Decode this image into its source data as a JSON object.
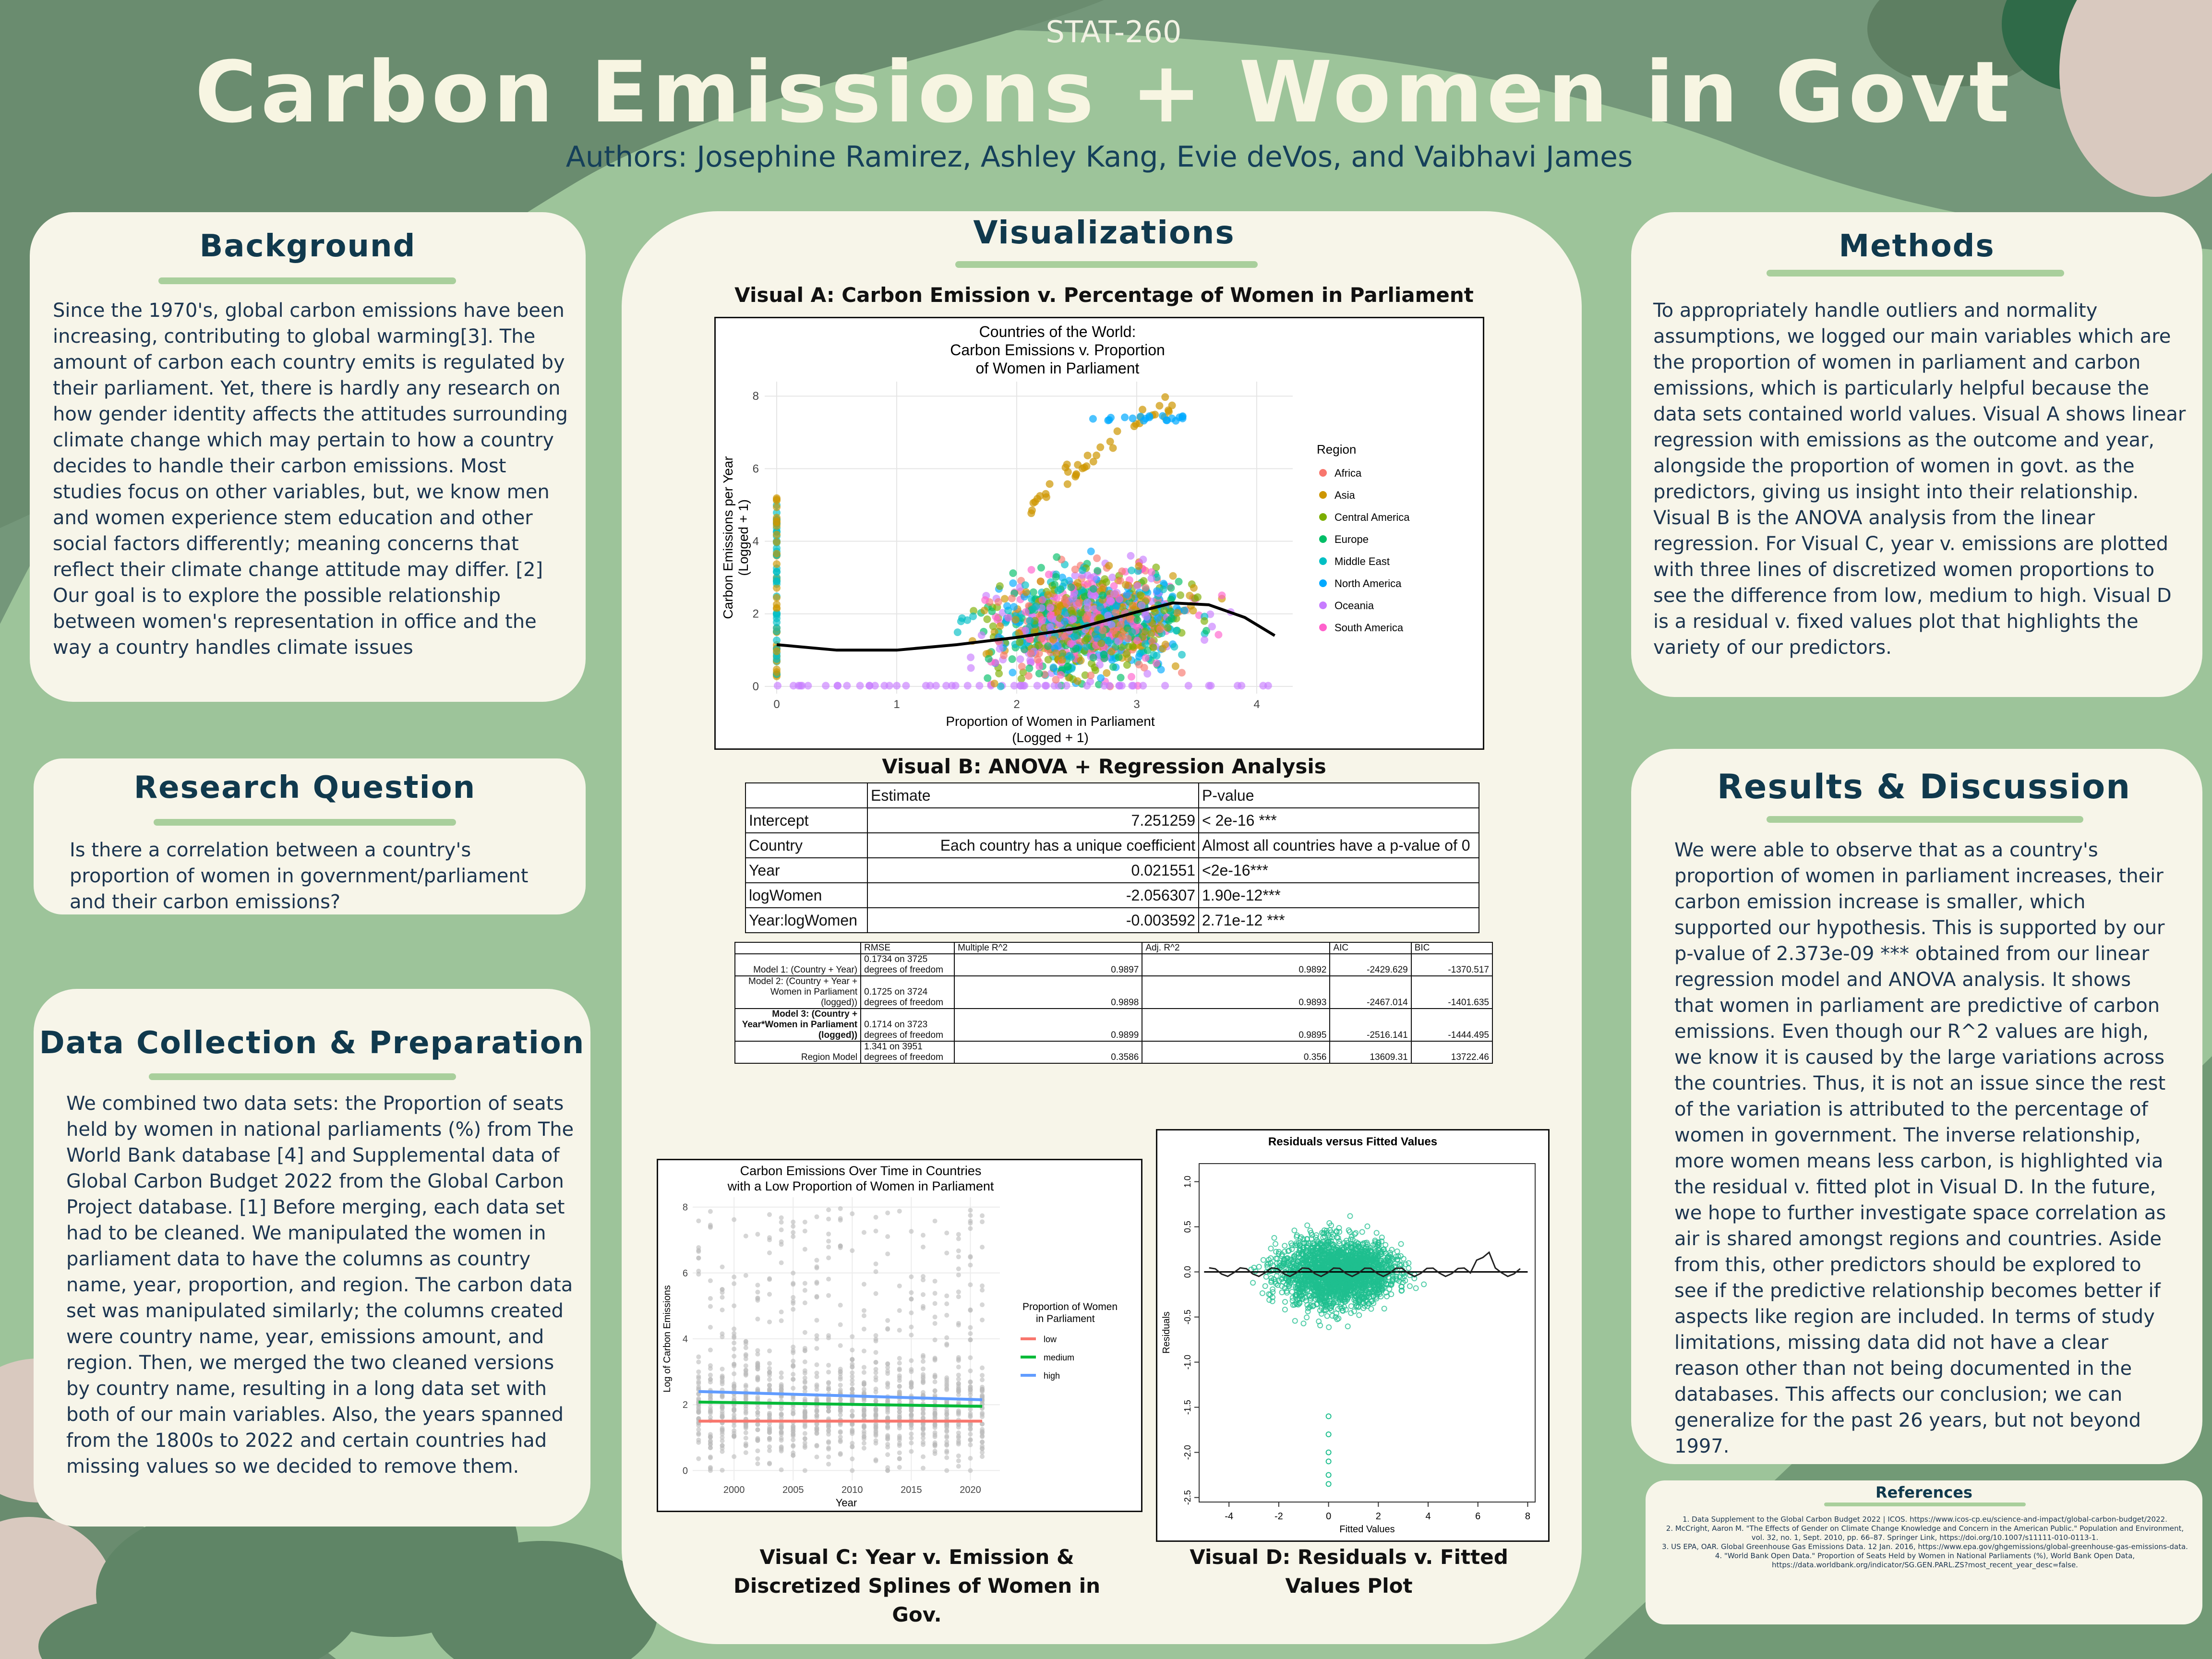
{
  "header": {
    "course": "STAT-260",
    "title": "Carbon Emissions + Women in Govt",
    "authors": "Authors: Josephine Ramirez, Ashley Kang, Evie deVos, and Vaibhavi James"
  },
  "background": {
    "title": "Background",
    "text": "Since the 1970's, global carbon emissions have been increasing, contributing to global warming[3]. The amount of carbon each country emits is regulated by their parliament. Yet, there is hardly any research on how gender identity affects the attitudes surrounding climate change which may pertain to how a country decides to handle their carbon emissions. Most studies focus on other variables, but, we know men and women experience stem education and other social factors differently; meaning concerns that reflect their climate change attitude may differ. [2]",
    "text2": "Our goal is to explore the possible relationship between women's representation in office and the way a country handles climate issues"
  },
  "research": {
    "title": "Research Question",
    "text": "Is there a correlation between a country's proportion of women in government/parliament and their carbon emissions?"
  },
  "data_collection": {
    "title": "Data Collection & Preparation",
    "text": "We combined two data sets: the Proportion of seats held by women in national parliaments (%) from The World Bank database [4] and Supplemental data of Global Carbon Budget 2022 from the Global Carbon Project database. [1] Before merging, each data set had to be cleaned. We manipulated the women in parliament data to have the columns as country name, year, proportion, and region. The carbon data set was manipulated similarly; the columns created were country name, year, emissions amount, and region. Then, we merged the two cleaned versions by country name, resulting in a long data set with both of our main variables. Also, the years spanned from the 1800s to 2022 and certain countries had missing values so we decided to remove them."
  },
  "methods": {
    "title": "Methods",
    "text": "To appropriately handle outliers and normality assumptions, we logged our main variables which are the proportion of women in parliament and carbon emissions, which is particularly helpful because the data sets contained world values. Visual A shows linear regression with emissions as the outcome and year, alongside the proportion of women in govt. as the predictors, giving us insight into their relationship. Visual B is the ANOVA analysis from the linear regression. For Visual C, year v. emissions are plotted with three lines of discretized women proportions to see the difference from low, medium to high. Visual D is a residual v. fixed values plot that highlights the variety of our predictors."
  },
  "results": {
    "title": "Results & Discussion",
    "text": "We were able to observe that as a country's proportion of women in parliament increases, their carbon emission increase is smaller, which supported our hypothesis. This is supported by our p-value of 2.373e-09 *** obtained from our linear regression model and ANOVA analysis. It shows that women in parliament are predictive of carbon emissions. Even though our R^2 values are high, we know it is caused by the large variations across the countries. Thus, it is not an issue since the rest of the variation is attributed to the percentage of women in government. The inverse relationship, more women means less carbon, is highlighted via the residual v. fitted plot in Visual D. In the future, we hope to further investigate space correlation as air is shared amongst regions and countries. Aside from this, other predictors should be explored to see if the predictive relationship becomes better if aspects like region are included. In terms of study limitations, missing data did not have a clear reason other than not being documented in the databases. This affects our conclusion; we can generalize for the past 26 years, but not beyond 1997."
  },
  "references": {
    "title": "References",
    "items": [
      "1. Data Supplement to the Global Carbon Budget 2022 | ICOS. https://www.icos-cp.eu/science-and-impact/global-carbon-budget/2022.",
      "2. McCright, Aaron M. \"The Effects of Gender on Climate Change Knowledge and Concern in the American Public.\" Population and Environment, vol. 32, no. 1, Sept. 2010, pp. 66–87. Springer Link, https://doi.org/10.1007/s11111-010-0113-1.",
      "3. US EPA, OAR. Global Greenhouse Gas Emissions Data. 12 Jan. 2016, https://www.epa.gov/ghgemissions/global-greenhouse-gas-emissions-data.",
      "4. \"World Bank Open Data.\" Proportion of Seats Held by Women in National Parliaments (%), World Bank Open Data, https://data.worldbank.org/indicator/SG.GEN.PARL.ZS?most_recent_year_desc=false."
    ]
  },
  "visualizations": {
    "title": "Visualizations",
    "caption_a": "Visual A: Carbon Emission v. Percentage of Women in Parliament",
    "caption_b": "Visual B: ANOVA  + Regression Analysis",
    "caption_c_1": "Visual C: Year v. Emission &",
    "caption_c_2": "Discretized Splines of Women in Gov.",
    "caption_d_1": "Visual D: Residuals v. Fitted",
    "caption_d_2": "Values Plot"
  },
  "anova_table": {
    "headers": [
      "",
      "Estimate",
      "P-value"
    ],
    "rows": [
      [
        "Intercept",
        "7.251259",
        "< 2e-16 ***"
      ],
      [
        "Country",
        "Each country has a unique coefficient",
        "Almost all countries have a p-value of 0"
      ],
      [
        "Year",
        "0.021551",
        "<2e-16***"
      ],
      [
        "logWomen",
        "-2.056307",
        "1.90e-12***"
      ],
      [
        "Year:logWomen",
        "-0.003592",
        "2.71e-12 ***"
      ]
    ]
  },
  "model_table": {
    "headers": [
      "",
      "RMSE",
      "Multiple R^2",
      "Adj. R^2",
      "AIC",
      "BIC"
    ],
    "rows": [
      [
        "Model 1: (Country + Year)",
        "0.1734 on 3725 degrees of freedom",
        "0.9897",
        "0.9892",
        "-2429.629",
        "-1370.517"
      ],
      [
        "Model 2: (Country + Year + Women in Parliament (logged))",
        "0.1725 on 3724 degrees of freedom",
        "0.9898",
        "0.9893",
        "-2467.014",
        "-1401.635"
      ],
      [
        "Model 3: (Country + Year*Women in Parliament (logged))",
        "0.1714 on 3723 degrees of freedom",
        "0.9899",
        "0.9895",
        "-2516.141",
        "-1444.495"
      ],
      [
        "Region Model",
        "1.341 on 3951 degrees of freedom",
        "0.3586",
        "0.356",
        "13609.31",
        "13722.46"
      ]
    ]
  },
  "chart_data": [
    {
      "type": "scatter",
      "title": "Countries of the World:\nCarbon Emissions v. Proportion\nof Women in Parliament",
      "xlabel": "Proportion of Women in Parliament\n(Logged + 1)",
      "ylabel": "Carbon Emissions per Year\n(Logged + 1)",
      "xlim": [
        -0.1,
        4.3
      ],
      "ylim": [
        -0.2,
        8.4
      ],
      "xticks": [
        0,
        1,
        2,
        3,
        4
      ],
      "yticks": [
        0,
        2,
        4,
        6,
        8
      ],
      "legend_title": "Region",
      "legend_position": "right",
      "grid": true,
      "series": [
        {
          "name": "Africa",
          "color": "#f8766d"
        },
        {
          "name": "Asia",
          "color": "#cd9600"
        },
        {
          "name": "Central America",
          "color": "#7cae00"
        },
        {
          "name": "Europe",
          "color": "#00be67"
        },
        {
          "name": "Middle East",
          "color": "#00bfc4"
        },
        {
          "name": "North America",
          "color": "#00a9ff"
        },
        {
          "name": "Oceania",
          "color": "#c77cff"
        },
        {
          "name": "South America",
          "color": "#ff61cc"
        }
      ],
      "trend": {
        "x": [
          0,
          0.5,
          1,
          1.5,
          2,
          2.5,
          3,
          3.3,
          3.6,
          3.9,
          4.15
        ],
        "y": [
          1.15,
          1.0,
          1.0,
          1.15,
          1.35,
          1.6,
          2.05,
          2.3,
          2.25,
          1.9,
          1.4
        ]
      }
    },
    {
      "type": "line",
      "title": "Carbon Emissions Over Time in Countries\nwith a Low Proportion of Women in Parliament",
      "xlabel": "Year",
      "ylabel": "Log of Carbon Emissions",
      "xlim": [
        1996.5,
        2022.5
      ],
      "ylim": [
        -0.3,
        8.3
      ],
      "xticks": [
        2000,
        2005,
        2010,
        2015,
        2020
      ],
      "yticks": [
        0,
        2,
        4,
        6,
        8
      ],
      "legend_title": "Proportion of Women\nin Parliament",
      "legend_position": "right",
      "series": [
        {
          "name": "low",
          "color": "#f8766d",
          "x": [
            1997,
            2021
          ],
          "y": [
            1.5,
            1.5
          ]
        },
        {
          "name": "medium",
          "color": "#00ba38",
          "x": [
            1997,
            2021
          ],
          "y": [
            2.08,
            1.95
          ]
        },
        {
          "name": "high",
          "color": "#619cff",
          "x": [
            1997,
            2021
          ],
          "y": [
            2.4,
            2.15
          ]
        }
      ]
    },
    {
      "type": "scatter",
      "title": "Residuals versus Fitted Values",
      "xlabel": "Fitted Values",
      "ylabel": "Residuals",
      "xlim": [
        -5.2,
        8.3
      ],
      "ylim": [
        -2.55,
        1.2
      ],
      "xticks": [
        -4,
        -2,
        0,
        2,
        4,
        6,
        8
      ],
      "yticks": [
        -2.5,
        -2.0,
        -1.5,
        -1.0,
        -0.5,
        0.0,
        0.5,
        1.0
      ],
      "color": "#1fbf8f"
    }
  ]
}
